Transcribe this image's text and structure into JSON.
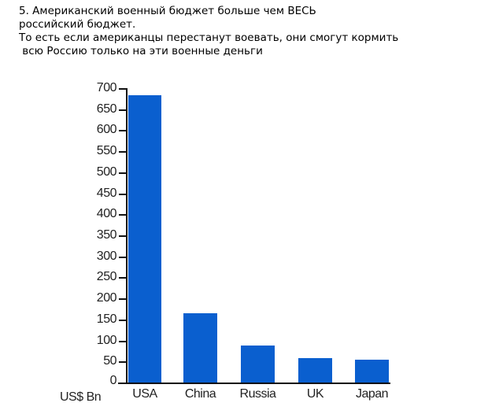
{
  "caption": {
    "line1": "5. Американский военный бюджет больше чем ВЕСЬ",
    "line2": "российский бюджет.",
    "line3": "То есть если американцы перестанут воевать, они смогут кормить",
    "line4": " всю Россию только на эти военные деньги"
  },
  "chart_data": {
    "type": "bar",
    "title": "",
    "categories": [
      "USA",
      "China",
      "Russia",
      "UK",
      "Japan"
    ],
    "values": [
      685,
      167,
      90,
      60,
      57
    ],
    "xlabel": "",
    "ylabel": "US$ Bn",
    "ylim": [
      0,
      700
    ],
    "yticks": [
      0,
      50,
      100,
      150,
      200,
      250,
      300,
      350,
      400,
      450,
      500,
      550,
      600,
      650,
      700
    ],
    "grid": false,
    "legend": null,
    "bar_color": "#0a5fcf"
  }
}
